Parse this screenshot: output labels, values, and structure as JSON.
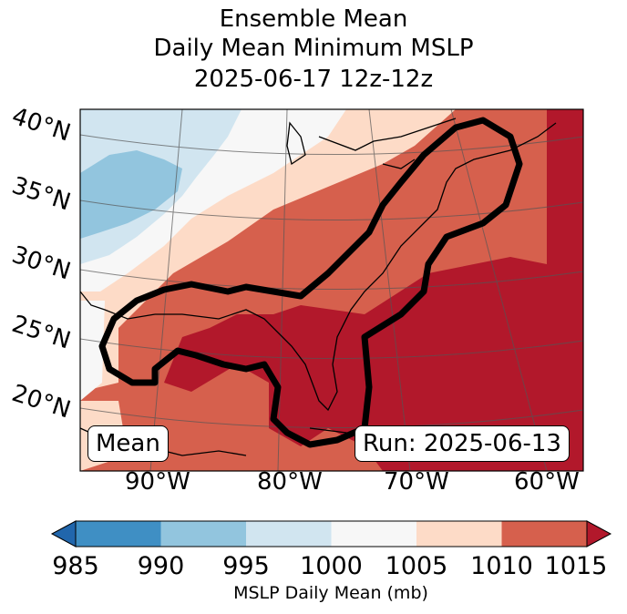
{
  "title": {
    "line1": "Ensemble Mean",
    "line2": "Daily Mean Minimum MSLP",
    "line3": "2025-06-17 12z-12z"
  },
  "lat_labels": [
    "40°N",
    "35°N",
    "30°N",
    "25°N",
    "20°N"
  ],
  "lon_labels": [
    "90°W",
    "80°W",
    "70°W",
    "60°W"
  ],
  "annotations": {
    "left_box": "Mean",
    "right_box": "Run: 2025-06-13"
  },
  "colorbar": {
    "title": "MSLP Daily Mean (mb)",
    "ticks": [
      "985",
      "990",
      "995",
      "1000",
      "1005",
      "1010",
      "1015"
    ],
    "colors": [
      "#2166ac",
      "#3f8fc4",
      "#92c5de",
      "#d1e5f0",
      "#f7f7f7",
      "#fddbc7",
      "#d6604d",
      "#b2182b"
    ]
  },
  "legend_colors": {
    "c990_995": "#92c5de",
    "c995_1000": "#d1e5f0",
    "c1000_1005": "#f7f7f7",
    "c1005_1010": "#fddbc7",
    "c1010_1015": "#d6604d",
    "c1015_plus": "#b2182b"
  }
}
